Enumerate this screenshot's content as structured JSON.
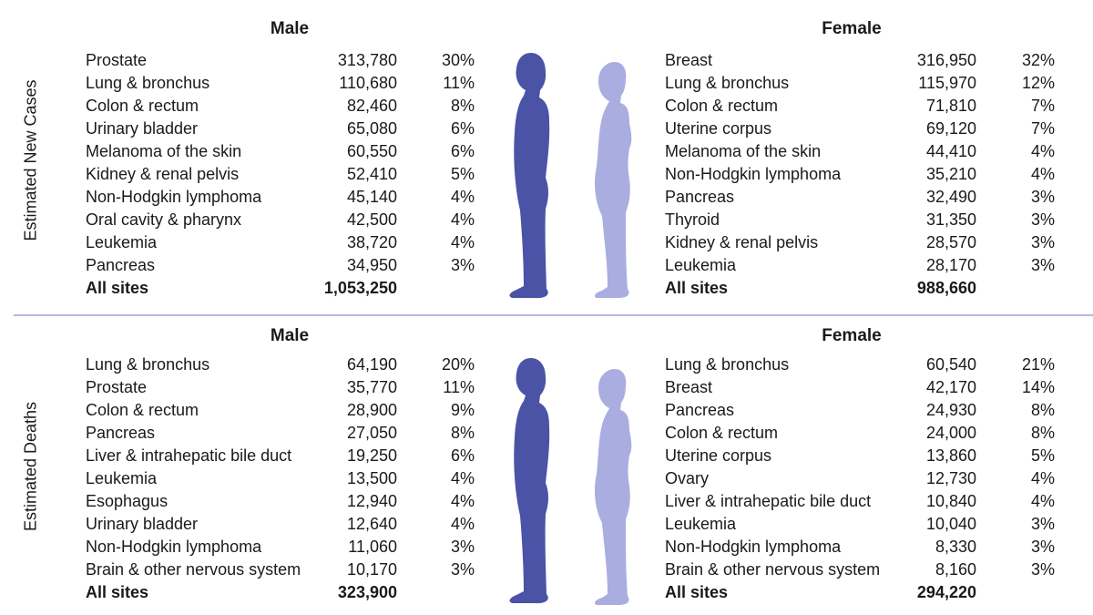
{
  "colors": {
    "male": "#4a53a6",
    "female": "#aaaddf",
    "divider": "#b3b7e0"
  },
  "chart_data": [
    {
      "type": "table",
      "section_label": "Estimated New Cases",
      "male": {
        "heading": "Male",
        "rows": [
          {
            "site": "Prostate",
            "count": "313,780",
            "pct": "30%"
          },
          {
            "site": "Lung & bronchus",
            "count": "110,680",
            "pct": "11%"
          },
          {
            "site": "Colon & rectum",
            "count": "82,460",
            "pct": "8%"
          },
          {
            "site": "Urinary bladder",
            "count": "65,080",
            "pct": "6%"
          },
          {
            "site": "Melanoma of the skin",
            "count": "60,550",
            "pct": "6%"
          },
          {
            "site": "Kidney & renal pelvis",
            "count": "52,410",
            "pct": "5%"
          },
          {
            "site": "Non-Hodgkin lymphoma",
            "count": "45,140",
            "pct": "4%"
          },
          {
            "site": "Oral cavity & pharynx",
            "count": "42,500",
            "pct": "4%"
          },
          {
            "site": "Leukemia",
            "count": "38,720",
            "pct": "4%"
          },
          {
            "site": "Pancreas",
            "count": "34,950",
            "pct": "3%"
          }
        ],
        "total": {
          "site": "All sites",
          "count": "1,053,250"
        }
      },
      "female": {
        "heading": "Female",
        "rows": [
          {
            "site": "Breast",
            "count": "316,950",
            "pct": "32%"
          },
          {
            "site": "Lung & bronchus",
            "count": "115,970",
            "pct": "12%"
          },
          {
            "site": "Colon & rectum",
            "count": "71,810",
            "pct": "7%"
          },
          {
            "site": "Uterine corpus",
            "count": "69,120",
            "pct": "7%"
          },
          {
            "site": "Melanoma of the skin",
            "count": "44,410",
            "pct": "4%"
          },
          {
            "site": "Non-Hodgkin lymphoma",
            "count": "35,210",
            "pct": "4%"
          },
          {
            "site": "Pancreas",
            "count": "32,490",
            "pct": "3%"
          },
          {
            "site": "Thyroid",
            "count": "31,350",
            "pct": "3%"
          },
          {
            "site": "Kidney & renal pelvis",
            "count": "28,570",
            "pct": "3%"
          },
          {
            "site": "Leukemia",
            "count": "28,170",
            "pct": "3%"
          }
        ],
        "total": {
          "site": "All sites",
          "count": "988,660"
        }
      }
    },
    {
      "type": "table",
      "section_label": "Estimated Deaths",
      "male": {
        "heading": "Male",
        "rows": [
          {
            "site": "Lung & bronchus",
            "count": "64,190",
            "pct": "20%"
          },
          {
            "site": "Prostate",
            "count": "35,770",
            "pct": "11%"
          },
          {
            "site": "Colon & rectum",
            "count": "28,900",
            "pct": "9%"
          },
          {
            "site": "Pancreas",
            "count": "27,050",
            "pct": "8%"
          },
          {
            "site": "Liver & intrahepatic bile duct",
            "count": "19,250",
            "pct": "6%"
          },
          {
            "site": "Leukemia",
            "count": "13,500",
            "pct": "4%"
          },
          {
            "site": "Esophagus",
            "count": "12,940",
            "pct": "4%"
          },
          {
            "site": "Urinary bladder",
            "count": "12,640",
            "pct": "4%"
          },
          {
            "site": "Non-Hodgkin lymphoma",
            "count": "11,060",
            "pct": "3%"
          },
          {
            "site": "Brain & other nervous system",
            "count": "10,170",
            "pct": "3%"
          }
        ],
        "total": {
          "site": "All sites",
          "count": "323,900"
        }
      },
      "female": {
        "heading": "Female",
        "rows": [
          {
            "site": "Lung & bronchus",
            "count": "60,540",
            "pct": "21%"
          },
          {
            "site": "Breast",
            "count": "42,170",
            "pct": "14%"
          },
          {
            "site": "Pancreas",
            "count": "24,930",
            "pct": "8%"
          },
          {
            "site": "Colon & rectum",
            "count": "24,000",
            "pct": "8%"
          },
          {
            "site": "Uterine corpus",
            "count": "13,860",
            "pct": "5%"
          },
          {
            "site": "Ovary",
            "count": "12,730",
            "pct": "4%"
          },
          {
            "site": "Liver & intrahepatic bile duct",
            "count": "10,840",
            "pct": "4%"
          },
          {
            "site": "Leukemia",
            "count": "10,040",
            "pct": "3%"
          },
          {
            "site": "Non-Hodgkin lymphoma",
            "count": "8,330",
            "pct": "3%"
          },
          {
            "site": "Brain & other nervous system",
            "count": "8,160",
            "pct": "3%"
          }
        ],
        "total": {
          "site": "All sites",
          "count": "294,220"
        }
      }
    }
  ]
}
